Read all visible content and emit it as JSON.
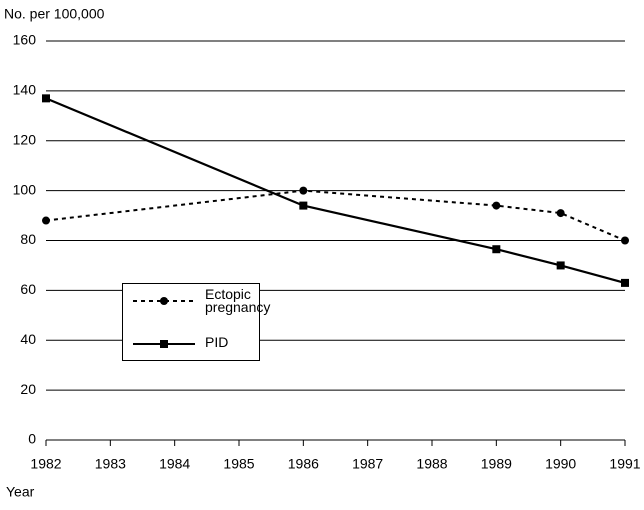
{
  "chart_data": {
    "type": "line",
    "y_label": "No. per 100,000",
    "x_label": "Year",
    "x": [
      1982,
      1986,
      1989,
      1990,
      1991
    ],
    "series": [
      {
        "name": "Ectopic pregnancy",
        "color": "#000000",
        "line_style": "dashed",
        "marker": "circle",
        "values": [
          88,
          100,
          94,
          91,
          80
        ]
      },
      {
        "name": "PID",
        "color": "#000000",
        "line_style": "solid",
        "marker": "square",
        "values": [
          137,
          94,
          76.5,
          70,
          63
        ]
      }
    ],
    "xlim": [
      1982,
      1991
    ],
    "xticks": [
      1982,
      1983,
      1984,
      1985,
      1986,
      1987,
      1988,
      1989,
      1990,
      1991
    ],
    "ylim": [
      0,
      160
    ],
    "yticks": [
      0,
      20,
      40,
      60,
      80,
      100,
      120,
      140,
      160
    ],
    "grid": true
  }
}
